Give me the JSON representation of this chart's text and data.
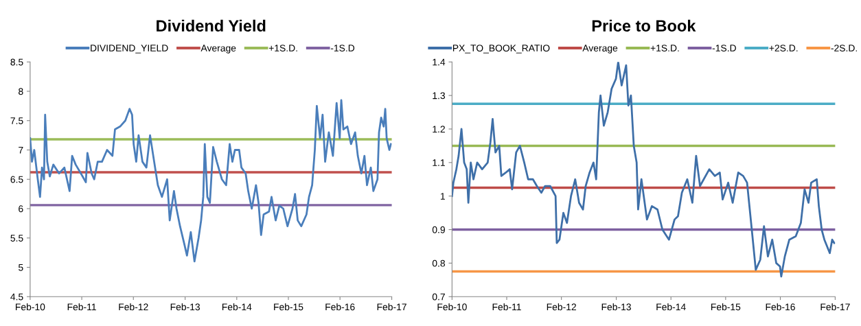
{
  "chart_data": [
    {
      "type": "line",
      "title": "Dividend Yield",
      "legend": "top",
      "grid": false,
      "marker": "none",
      "line_style": "solid",
      "xlim": [
        "2010-02-01",
        "2017-02-01"
      ],
      "xticks": [
        {
          "value": "2010-02-01",
          "label": "Feb-10"
        },
        {
          "value": "2011-02-01",
          "label": "Feb-11"
        },
        {
          "value": "2012-02-01",
          "label": "Feb-12"
        },
        {
          "value": "2013-02-01",
          "label": "Feb-13"
        },
        {
          "value": "2014-02-01",
          "label": "Feb-14"
        },
        {
          "value": "2015-02-01",
          "label": "Feb-15"
        },
        {
          "value": "2016-02-01",
          "label": "Feb-16"
        },
        {
          "value": "2017-02-01",
          "label": "Feb-17"
        }
      ],
      "ylim": [
        4.5,
        8.5
      ],
      "yticks": [
        4.5,
        5,
        5.5,
        6,
        6.5,
        7,
        7.5,
        8,
        8.5
      ],
      "series": [
        {
          "name": "DIVIDEND_YIELD",
          "color": "#4a7ebb",
          "x": [
            "2010-02-01",
            "2010-02-14",
            "2010-03-02",
            "2010-03-27",
            "2010-04-12",
            "2010-04-26",
            "2010-05-10",
            "2010-05-18",
            "2010-06-02",
            "2010-06-20",
            "2010-07-15",
            "2010-08-25",
            "2010-10-01",
            "2010-11-07",
            "2010-11-25",
            "2010-12-20",
            "2011-01-26",
            "2011-03-02",
            "2011-03-13",
            "2011-04-12",
            "2011-04-30",
            "2011-05-25",
            "2011-06-24",
            "2011-07-30",
            "2011-09-06",
            "2011-09-24",
            "2011-10-30",
            "2011-12-06",
            "2012-01-05",
            "2012-01-23",
            "2012-02-03",
            "2012-02-21",
            "2012-03-09",
            "2012-04-05",
            "2012-05-03",
            "2012-05-29",
            "2012-06-27",
            "2012-07-23",
            "2012-08-21",
            "2012-09-27",
            "2012-10-15",
            "2012-11-14",
            "2012-12-02",
            "2012-12-27",
            "2013-01-26",
            "2013-02-14",
            "2013-03-13",
            "2013-04-08",
            "2013-05-07",
            "2013-05-25",
            "2013-06-09",
            "2013-06-20",
            "2013-07-08",
            "2013-07-26",
            "2013-08-18",
            "2013-09-13",
            "2013-10-19",
            "2013-11-18",
            "2013-12-13",
            "2014-01-01",
            "2014-01-19",
            "2014-02-18",
            "2014-03-06",
            "2014-04-05",
            "2014-04-23",
            "2014-05-18",
            "2014-06-17",
            "2014-07-05",
            "2014-07-23",
            "2014-08-10",
            "2014-09-17",
            "2014-10-05",
            "2014-11-03",
            "2014-11-29",
            "2014-12-27",
            "2015-01-26",
            "2015-03-02",
            "2015-03-20",
            "2015-04-08",
            "2015-05-03",
            "2015-06-09",
            "2015-06-27",
            "2015-07-19",
            "2015-08-07",
            "2015-08-21",
            "2015-09-13",
            "2015-10-01",
            "2015-10-19",
            "2015-11-14",
            "2015-12-13",
            "2016-01-08",
            "2016-01-30",
            "2016-02-10",
            "2016-02-25",
            "2016-03-24",
            "2016-04-19",
            "2016-05-18",
            "2016-06-06",
            "2016-07-01",
            "2016-07-23",
            "2016-08-10",
            "2016-09-06",
            "2016-09-24",
            "2016-10-23",
            "2016-11-03",
            "2016-11-18",
            "2016-12-06",
            "2016-12-17",
            "2016-12-27",
            "2017-01-15",
            "2017-01-26"
          ],
          "values": [
            7.2,
            6.8,
            7.0,
            6.5,
            6.2,
            6.7,
            6.5,
            7.6,
            6.8,
            6.55,
            6.75,
            6.6,
            6.7,
            6.3,
            6.9,
            6.75,
            6.6,
            6.45,
            6.95,
            6.6,
            6.5,
            6.8,
            6.8,
            7.0,
            6.9,
            7.35,
            7.4,
            7.5,
            7.7,
            7.6,
            7.1,
            6.8,
            7.25,
            6.8,
            6.7,
            7.25,
            6.8,
            6.4,
            6.2,
            6.5,
            5.8,
            6.3,
            6.0,
            5.7,
            5.4,
            5.2,
            5.6,
            5.1,
            5.5,
            5.8,
            6.2,
            7.1,
            6.2,
            6.1,
            7.05,
            6.8,
            6.5,
            6.4,
            7.1,
            6.8,
            7.0,
            7.0,
            6.7,
            6.6,
            6.3,
            6.0,
            6.4,
            6.1,
            5.55,
            5.9,
            5.95,
            6.2,
            5.8,
            6.05,
            6.0,
            5.7,
            6.0,
            6.25,
            5.8,
            5.7,
            5.9,
            6.2,
            6.4,
            7.0,
            7.75,
            7.2,
            7.6,
            6.8,
            7.3,
            6.9,
            7.8,
            7.2,
            7.85,
            7.35,
            7.4,
            7.1,
            7.3,
            6.9,
            6.6,
            6.9,
            6.4,
            6.7,
            6.3,
            6.5,
            7.3,
            7.55,
            7.4,
            7.7,
            7.2,
            7.0,
            7.1
          ]
        }
      ],
      "ref_lines": [
        {
          "axis": "y",
          "value": 6.62,
          "label": "Average",
          "color": "#c0504d"
        },
        {
          "axis": "y",
          "value": 7.18,
          "label": "+1S.D.",
          "color": "#9bbb59"
        },
        {
          "axis": "y",
          "value": 6.06,
          "label": "-1S.D",
          "color": "#8064a2"
        }
      ]
    },
    {
      "type": "line",
      "title": "Price to Book",
      "legend": "top",
      "grid": false,
      "marker": "none",
      "line_style": "solid",
      "xlim": [
        "2010-02-01",
        "2017-02-01"
      ],
      "xticks": [
        {
          "value": "2010-02-01",
          "label": "Feb-10"
        },
        {
          "value": "2011-02-01",
          "label": "Feb-11"
        },
        {
          "value": "2012-02-01",
          "label": "Feb-12"
        },
        {
          "value": "2013-02-01",
          "label": "Feb-13"
        },
        {
          "value": "2014-02-01",
          "label": "Feb-14"
        },
        {
          "value": "2015-02-01",
          "label": "Feb-15"
        },
        {
          "value": "2016-02-01",
          "label": "Feb-16"
        },
        {
          "value": "2017-02-01",
          "label": "Feb-17"
        }
      ],
      "ylim": [
        0.7,
        1.4
      ],
      "yticks": [
        0.7,
        0.8,
        0.9,
        1,
        1.1,
        1.2,
        1.3,
        1.4
      ],
      "series": [
        {
          "name": "PX_TO_BOOK_RATIO",
          "color": "#3e6fa8",
          "x": [
            "2010-02-01",
            "2010-02-10",
            "2010-03-02",
            "2010-03-17",
            "2010-04-05",
            "2010-04-23",
            "2010-05-10",
            "2010-05-21",
            "2010-06-06",
            "2010-06-24",
            "2010-07-19",
            "2010-08-21",
            "2010-09-27",
            "2010-10-15",
            "2010-10-30",
            "2010-11-18",
            "2010-12-13",
            "2010-12-27",
            "2011-01-26",
            "2011-02-21",
            "2011-03-09",
            "2011-04-05",
            "2011-04-30",
            "2011-05-29",
            "2011-06-24",
            "2011-07-26",
            "2011-08-21",
            "2011-09-20",
            "2011-10-15",
            "2011-11-18",
            "2011-12-24",
            "2012-01-01",
            "2012-01-19",
            "2012-02-14",
            "2012-03-09",
            "2012-04-05",
            "2012-05-03",
            "2012-05-29",
            "2012-06-24",
            "2012-07-12",
            "2012-08-07",
            "2012-09-02",
            "2012-09-20",
            "2012-10-08",
            "2012-10-19",
            "2012-11-10",
            "2012-12-06",
            "2013-01-01",
            "2013-01-30",
            "2013-02-14",
            "2013-03-09",
            "2013-04-08",
            "2013-04-23",
            "2013-05-10",
            "2013-05-29",
            "2013-06-17",
            "2013-06-27",
            "2013-07-19",
            "2013-08-25",
            "2013-09-27",
            "2013-11-03",
            "2013-12-06",
            "2014-01-19",
            "2014-02-25",
            "2014-03-20",
            "2014-04-15",
            "2014-05-21",
            "2014-06-24",
            "2014-07-19",
            "2014-08-14",
            "2014-10-15",
            "2014-11-21",
            "2014-12-24",
            "2015-01-12",
            "2015-02-18",
            "2015-03-20",
            "2015-04-26",
            "2015-05-29",
            "2015-06-24",
            "2015-07-12",
            "2015-07-30",
            "2015-08-21",
            "2015-09-20",
            "2015-10-15",
            "2015-11-10",
            "2015-12-09",
            "2016-01-05",
            "2016-01-30",
            "2016-02-07",
            "2016-03-02",
            "2016-04-01",
            "2016-05-14",
            "2016-06-17",
            "2016-07-12",
            "2016-08-07",
            "2016-08-25",
            "2016-10-01",
            "2016-10-15",
            "2016-11-03",
            "2016-11-21",
            "2016-12-27",
            "2017-01-12",
            "2017-01-26"
          ],
          "values": [
            1.0,
            1.04,
            1.08,
            1.12,
            1.2,
            1.1,
            1.08,
            0.98,
            1.1,
            1.05,
            1.1,
            1.08,
            1.1,
            1.16,
            1.23,
            1.13,
            1.15,
            1.06,
            1.07,
            1.08,
            1.02,
            1.13,
            1.15,
            1.1,
            1.05,
            1.05,
            1.03,
            1.01,
            1.03,
            1.03,
            1.0,
            0.86,
            0.87,
            0.95,
            0.92,
            1.0,
            1.05,
            0.98,
            0.96,
            1.03,
            1.07,
            1.1,
            1.05,
            1.25,
            1.3,
            1.21,
            1.25,
            1.32,
            1.35,
            1.4,
            1.33,
            1.39,
            1.27,
            1.3,
            1.15,
            1.1,
            0.96,
            1.05,
            0.93,
            0.97,
            0.96,
            0.9,
            0.87,
            0.93,
            0.94,
            1.01,
            1.05,
            0.98,
            1.12,
            1.03,
            1.08,
            1.06,
            1.07,
            0.99,
            1.04,
            0.98,
            1.07,
            1.06,
            1.04,
            0.96,
            0.88,
            0.78,
            0.81,
            0.91,
            0.82,
            0.87,
            0.8,
            0.79,
            0.76,
            0.82,
            0.87,
            0.88,
            0.92,
            1.02,
            0.98,
            1.04,
            1.05,
            0.97,
            0.9,
            0.87,
            0.83,
            0.87,
            0.86
          ]
        }
      ],
      "ref_lines": [
        {
          "axis": "y",
          "value": 1.025,
          "label": "Average",
          "color": "#be4b48"
        },
        {
          "axis": "y",
          "value": 1.15,
          "label": "+1S.D.",
          "color": "#98b954"
        },
        {
          "axis": "y",
          "value": 0.9,
          "label": "-1S.D",
          "color": "#7d60a0"
        },
        {
          "axis": "y",
          "value": 1.275,
          "label": "+2S.D.",
          "color": "#4bacc6"
        },
        {
          "axis": "y",
          "value": 0.775,
          "label": "-2S.D.",
          "color": "#f79646"
        }
      ]
    }
  ]
}
